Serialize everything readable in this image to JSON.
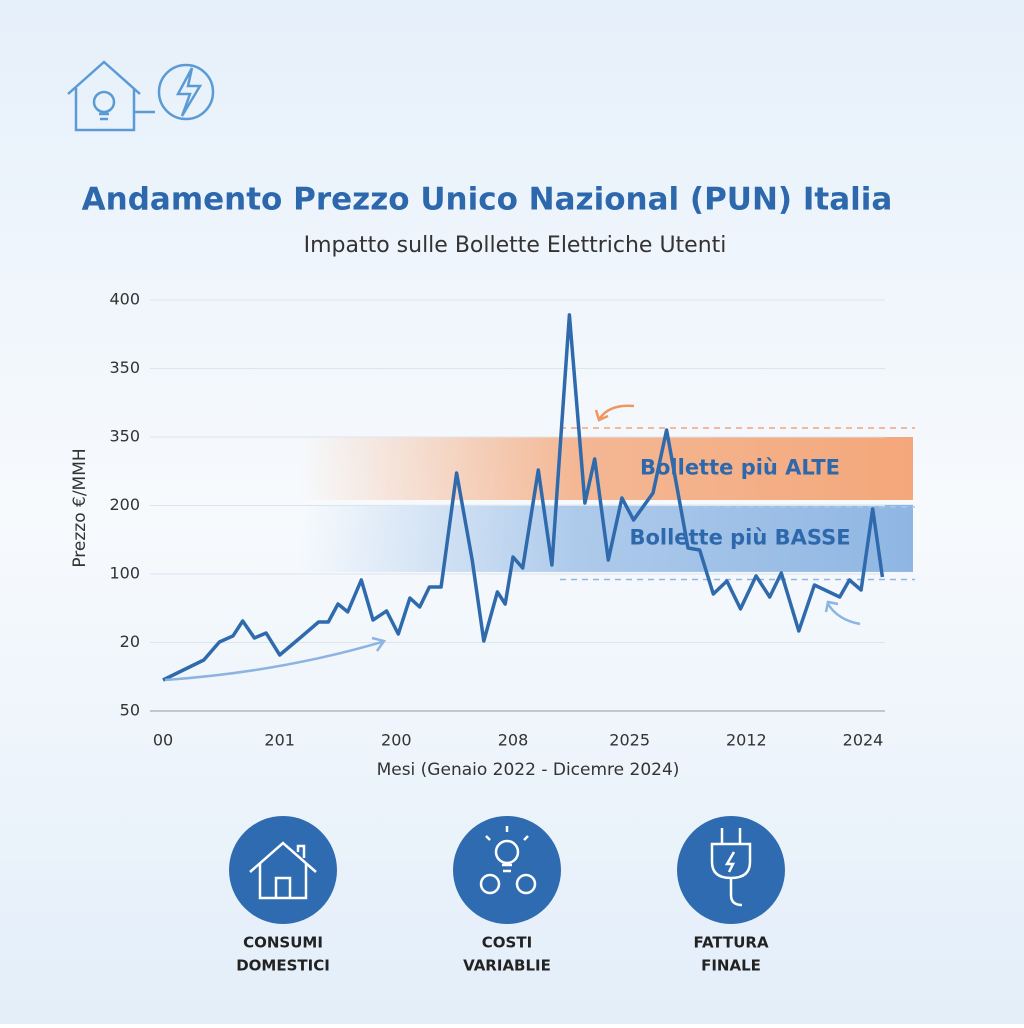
{
  "chart_data": {
    "type": "line",
    "title": "Andamento Prezzo Unico Nazional (PUN) Italia",
    "subtitle": "Impatto sulle Bollette Elettriche Utenti",
    "y_label": "Prezzo €/MMH",
    "x_label": "Mesi (Genaio 2022 - Dicemre 2024)",
    "xlim": [
      0,
      36
    ],
    "ylim": [
      100,
      400
    ],
    "xticks": [
      {
        "value": 0,
        "label": "00"
      },
      {
        "value": 6,
        "label": "201"
      },
      {
        "value": 12,
        "label": "200"
      },
      {
        "value": 18,
        "label": "208"
      },
      {
        "value": 24,
        "label": "2025"
      },
      {
        "value": 30,
        "label": "2012"
      },
      {
        "value": 36,
        "label": "2024"
      }
    ],
    "yticks": [
      {
        "value": 100,
        "label": "50"
      },
      {
        "value": 150,
        "label": "20"
      },
      {
        "value": 200,
        "label": "100"
      },
      {
        "value": 250,
        "label": "200"
      },
      {
        "value": 300,
        "label": "350"
      },
      350,
      400
    ],
    "grid": true,
    "series": [
      {
        "color": "#2f6aad",
        "x": [
          0,
          2.1,
          2.9,
          3.6,
          4.1,
          4.7,
          5.3,
          6,
          7.1,
          8,
          8.5,
          9,
          9.5,
          10.2,
          10.8,
          11.5,
          12.1,
          12.7,
          13.2,
          13.7,
          14.3,
          15.1,
          15.9,
          16.5,
          17.2,
          17.6,
          18,
          18.5,
          19.3,
          20,
          20.9,
          21.7,
          22.2,
          22.9,
          23.6,
          24.2,
          25.2,
          25.9,
          27,
          27.6,
          28.3,
          29,
          29.7,
          30.5,
          31.2,
          31.8,
          32.7,
          33.5,
          34.8,
          35.3,
          35.9,
          36.5,
          37
        ],
        "values": [
          122.6,
          137.2,
          150.4,
          154.8,
          165.7,
          153.3,
          156.9,
          140.9,
          154,
          165,
          165,
          178.1,
          172.3,
          195.6,
          166.4,
          173,
          156.2,
          182.5,
          175.9,
          190.5,
          190.5,
          273.7,
          210.2,
          151.1,
          186.9,
          178.1,
          212.4,
          204.4,
          275.9,
          206.6,
          389.1,
          251.8,
          284,
          210.2,
          255.5,
          239.4,
          259.1,
          305.1,
          219,
          217.5,
          185.4,
          194.9,
          174.5,
          198.6,
          183.2,
          200.7,
          158.4,
          192,
          183.2,
          195.6,
          188.3,
          247.5,
          197.8
        ]
      }
    ],
    "bands": [
      {
        "label": "Bollette più ALTE",
        "range": [
          254,
          300
        ],
        "color": "#f4a77a"
      },
      {
        "label": "Bollette più BASSE",
        "range": [
          201.5,
          250.5
        ],
        "color": "#8fb6e3"
      }
    ],
    "dashed_lines": [
      {
        "value": 306.6,
        "color": "#f0a679"
      },
      {
        "value": 249,
        "color": "#a9c8ea"
      },
      {
        "value": 196,
        "color": "#8fb6e3"
      }
    ]
  },
  "features": [
    {
      "lines": [
        "CONSUMI",
        "DOMESTICI"
      ]
    },
    {
      "lines": [
        "COSTI",
        "VARIABLIE"
      ]
    },
    {
      "lines": [
        "FATTURA",
        "FINALE"
      ]
    }
  ]
}
